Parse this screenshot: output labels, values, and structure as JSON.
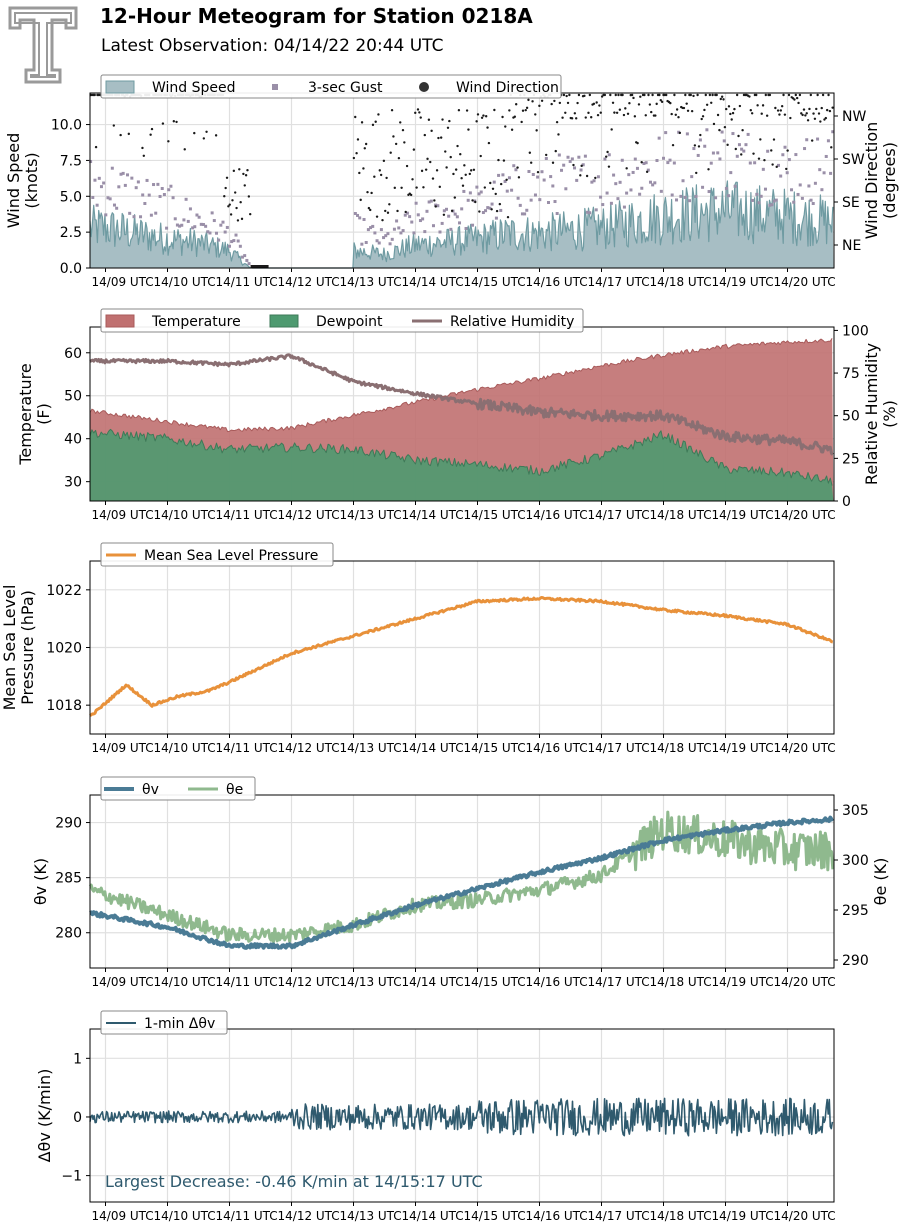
{
  "header": {
    "title": "12-Hour Meteogram for Station 0218A",
    "subtitle": "Latest Observation: 04/14/22 20:44 UTC"
  },
  "colors": {
    "wind_fill": "#a7bec4",
    "wind_line": "#6f9ba2",
    "gust": "#9a8fa8",
    "direction": "#1a1a1a",
    "temperature": "#c07070",
    "dewpoint": "#4e9a70",
    "rh": "#8a6f72",
    "pressure": "#e8913a",
    "theta_v": "#4a7b95",
    "theta_e": "#8fb98e",
    "dtheta": "#2f5a6e",
    "grid": "#e0e0e0",
    "annotation": "#2f5a6e",
    "logo": "#9a9a9a"
  },
  "time_ticks": [
    "14/09 UTC",
    "14/10 UTC",
    "14/11 UTC",
    "14/12 UTC",
    "14/13 UTC",
    "14/14 UTC",
    "14/15 UTC",
    "14/16 UTC",
    "14/17 UTC",
    "14/18 UTC",
    "14/19 UTC",
    "14/20 UTC"
  ],
  "chart_data": [
    {
      "type": "area",
      "panel": "wind",
      "legend": [
        "Wind Speed",
        "3-sec Gust",
        "Wind Direction"
      ],
      "ylabel": "Wind Speed\n(knots)",
      "y2label": "Wind Direction\n(degrees)",
      "ylim": [
        0,
        12.2
      ],
      "yticks": [
        "0.0",
        "2.5",
        "5.0",
        "7.5",
        "10.0"
      ],
      "y2ticks": [
        "NE",
        "SE",
        "SW",
        "NW"
      ],
      "xlim": [
        "14/08:45",
        "14/20:45"
      ],
      "x": [
        "14/09:00",
        "14/10:00",
        "14/10:30",
        "14/11:00",
        "14/11:20",
        "14/13:00",
        "14/13:30",
        "14/14:00",
        "14/15:00",
        "14/15:30",
        "14/16:00",
        "14/17:00",
        "14/18:00",
        "14/19:00",
        "14/20:00",
        "14/20:44"
      ],
      "series": [
        {
          "name": "Wind Speed",
          "values": [
            3.5,
            2.5,
            2.2,
            1.5,
            0.0,
            1.5,
            1.2,
            2.0,
            2.5,
            3.0,
            3.0,
            3.5,
            4.5,
            5.0,
            4.5,
            4.0
          ]
        },
        {
          "name": "3-sec Gust",
          "values": [
            6.0,
            4.5,
            3.5,
            2.5,
            0.2,
            3.0,
            2.0,
            3.5,
            4.5,
            5.5,
            6.0,
            6.5,
            7.5,
            8.0,
            7.0,
            7.5
          ]
        }
      ]
    },
    {
      "type": "area",
      "panel": "thermo",
      "legend": [
        "Temperature",
        "Dewpoint",
        "Relative Humidity"
      ],
      "ylabel": "Temperature\n(F)",
      "y2label": "Relative Humidity\n(%)",
      "ylim": [
        25.5,
        66
      ],
      "y2lim": [
        0,
        102
      ],
      "yticks": [
        "30",
        "40",
        "50",
        "60"
      ],
      "y2ticks": [
        "0",
        "25",
        "50",
        "75",
        "100"
      ],
      "x": [
        "14/08:45",
        "14/10:00",
        "14/11:00",
        "14/12:00",
        "14/13:00",
        "14/14:00",
        "14/15:00",
        "14/16:00",
        "14/17:00",
        "14/18:00",
        "14/19:00",
        "14/20:00",
        "14/20:44"
      ],
      "series": [
        {
          "name": "Temperature",
          "values": [
            46.5,
            44.0,
            42.0,
            42.5,
            45.5,
            48.5,
            51.5,
            54.0,
            57.0,
            59.5,
            61.5,
            62.5,
            63.0
          ]
        },
        {
          "name": "Dewpoint",
          "values": [
            41.5,
            40.0,
            37.5,
            38.0,
            37.5,
            35.0,
            34.0,
            32.5,
            36.0,
            41.0,
            33.0,
            32.0,
            30.0
          ]
        },
        {
          "name": "Relative Humidity",
          "values": [
            82,
            82,
            80,
            85,
            70,
            63,
            57,
            52,
            50,
            50,
            38,
            35,
            30
          ]
        }
      ]
    },
    {
      "type": "line",
      "panel": "pressure",
      "legend": [
        "Mean Sea Level Pressure"
      ],
      "ylabel": "Mean Sea Level\nPressure (hPa)",
      "ylim": [
        1017.0,
        1023.0
      ],
      "yticks": [
        "1018",
        "1020",
        "1022"
      ],
      "x": [
        "14/08:45",
        "14/09:20",
        "14/09:45",
        "14/10:10",
        "14/10:40",
        "14/11:00",
        "14/11:30",
        "14/12:00",
        "14/13:00",
        "14/14:00",
        "14/15:00",
        "14/16:00",
        "14/17:00",
        "14/18:00",
        "14/19:00",
        "14/20:00",
        "14/20:44"
      ],
      "series": [
        {
          "name": "Mean Sea Level Pressure",
          "values": [
            1017.6,
            1018.7,
            1018.0,
            1018.3,
            1018.5,
            1018.8,
            1019.3,
            1019.8,
            1020.4,
            1021.0,
            1021.6,
            1021.7,
            1021.6,
            1021.3,
            1021.1,
            1020.8,
            1020.2
          ]
        }
      ]
    },
    {
      "type": "line",
      "panel": "theta",
      "legend": [
        "θv",
        "θe"
      ],
      "ylabel": "θv (K)",
      "y2label": "θe (K)",
      "ylim": [
        276.8,
        292.5
      ],
      "y2lim": [
        289.2,
        306.5
      ],
      "yticks": [
        "280",
        "285",
        "290"
      ],
      "y2ticks": [
        "290",
        "295",
        "300",
        "305"
      ],
      "x": [
        "14/08:45",
        "14/10:00",
        "14/11:00",
        "14/12:00",
        "14/13:00",
        "14/14:00",
        "14/15:00",
        "14/16:00",
        "14/17:00",
        "14/18:00",
        "14/19:00",
        "14/20:00",
        "14/20:44"
      ],
      "series": [
        {
          "name": "θv",
          "values": [
            281.8,
            280.5,
            278.8,
            278.8,
            280.7,
            282.5,
            284.0,
            285.5,
            286.8,
            288.4,
            289.3,
            290.0,
            290.3
          ]
        },
        {
          "name": "θe",
          "values": [
            297.0,
            294.5,
            292.5,
            292.5,
            293.5,
            295.5,
            296.0,
            297.0,
            298.5,
            303.0,
            302.0,
            301.0,
            301.0
          ]
        }
      ]
    },
    {
      "type": "line",
      "panel": "dtheta",
      "legend": [
        "1-min Δθv"
      ],
      "ylabel": "Δθv (K/min)",
      "ylim": [
        -1.45,
        1.5
      ],
      "yticks": [
        "−1",
        "0",
        "1"
      ],
      "annotation": "Largest Decrease: -0.46 K/min at 14/15:17 UTC",
      "x": [
        "14/08:45",
        "14/12:00",
        "14/15:17",
        "14/20:44"
      ],
      "series": [
        {
          "name": "1-min Δθv",
          "values": [
            0.0,
            0.0,
            -0.46,
            0.0
          ]
        }
      ]
    }
  ]
}
